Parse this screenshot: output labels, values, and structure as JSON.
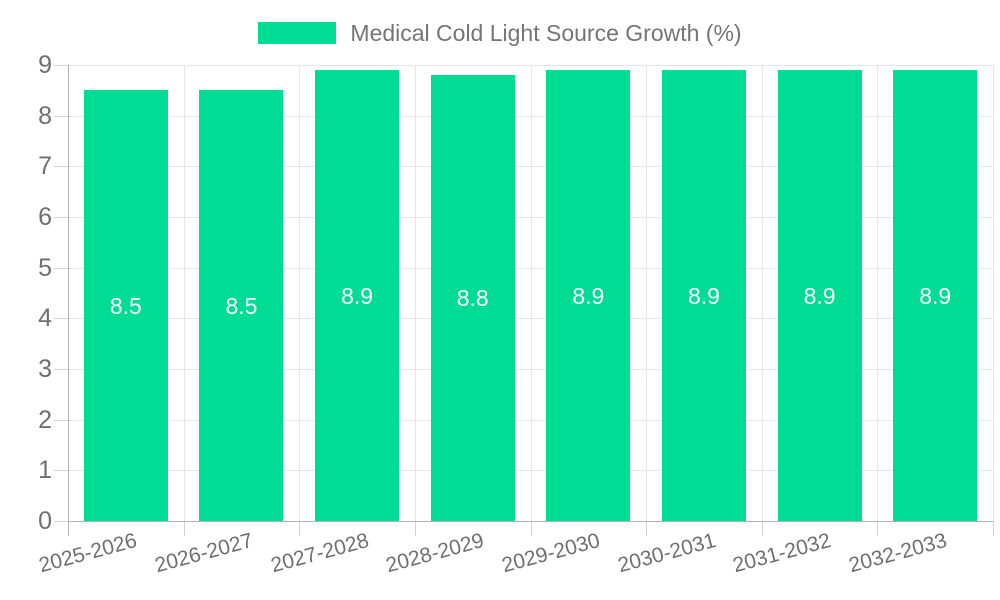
{
  "chart_data": {
    "type": "bar",
    "title": "Medical Cold Light Source Growth (%)",
    "legend": {
      "label": "Medical Cold Light Source Growth (%)",
      "position": "top-center"
    },
    "categories": [
      "2025-2026",
      "2026-2027",
      "2027-2028",
      "2028-2029",
      "2029-2030",
      "2030-2031",
      "2031-2032",
      "2032-2033"
    ],
    "values": [
      8.5,
      8.5,
      8.9,
      8.8,
      8.9,
      8.9,
      8.9,
      8.9
    ],
    "data_labels": [
      "8.5",
      "8.5",
      "8.9",
      "8.8",
      "8.9",
      "8.9",
      "8.9",
      "8.9"
    ],
    "xlabel": "",
    "ylabel": "",
    "ylim": [
      0,
      9
    ],
    "y_ticks": [
      0,
      1,
      2,
      3,
      4,
      5,
      6,
      7,
      8,
      9
    ],
    "grid": "horizontal-and-vertical",
    "x_label_rotation_deg": -15,
    "colors": {
      "bar": "#00DC94",
      "value_label": "#FFFFFF",
      "axis_line": "#B3B3B3",
      "gridline": "#E7E7E7",
      "tick": "#D2D2D2",
      "tick_label": "#6F6F6F",
      "legend_text": "#757575",
      "background": "#FFFFFF"
    }
  }
}
